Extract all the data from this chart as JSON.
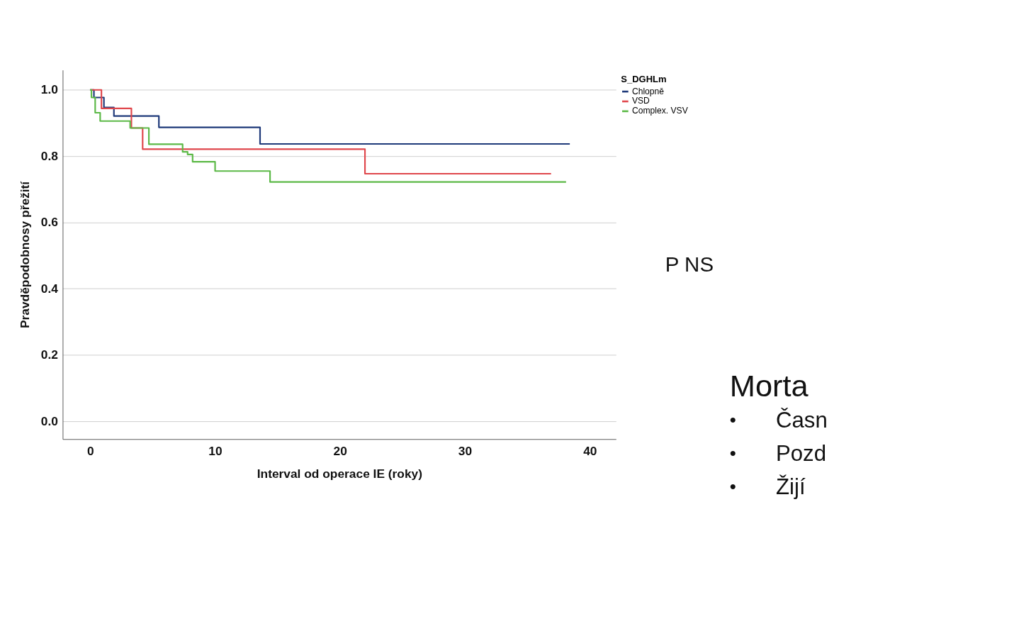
{
  "chart_data": {
    "type": "step",
    "xlabel": "Interval od operace IE (roky)",
    "ylabel": "Pravděpodobnosy přežití",
    "legend_title": "S_DGHLm",
    "series": [
      {
        "name": "Chlopně",
        "color": "#1f3a7a",
        "x": [
          0,
          0.3,
          1.1,
          1.9,
          5.5,
          13.6,
          38.4
        ],
        "values": [
          1.0,
          0.977,
          0.947,
          0.921,
          0.887,
          0.837,
          0.837
        ]
      },
      {
        "name": "VSD",
        "color": "#e0474c",
        "x": [
          0,
          0.9,
          3.3,
          4.2,
          22.0,
          36.9
        ],
        "values": [
          1.0,
          0.944,
          0.885,
          0.821,
          0.747,
          0.747
        ]
      },
      {
        "name": "Complex. VSV",
        "color": "#5cb947",
        "x": [
          0,
          0.1,
          0.4,
          0.8,
          3.2,
          4.7,
          7.4,
          7.8,
          8.2,
          10.0,
          14.4,
          38.1
        ],
        "values": [
          1.0,
          0.977,
          0.931,
          0.906,
          0.885,
          0.836,
          0.813,
          0.805,
          0.783,
          0.755,
          0.722,
          0.722
        ]
      }
    ],
    "xlim": [
      -2.2,
      42.1
    ],
    "xticks": [
      0,
      10,
      20,
      30,
      40
    ],
    "ylim": [
      -0.054,
      1.06
    ],
    "yticks": [
      {
        "value": 0,
        "label": "0.0"
      },
      0.2,
      0.4,
      0.6,
      0.8,
      {
        "value": 1,
        "label": "1.0"
      }
    ],
    "grid": "y",
    "legend": "top right",
    "marker": "none",
    "line_style": "solid",
    "annotations": [
      "P NS",
      "Morta",
      "•",
      "Časn",
      "•",
      "Pozd",
      "•",
      "Žijí"
    ]
  }
}
